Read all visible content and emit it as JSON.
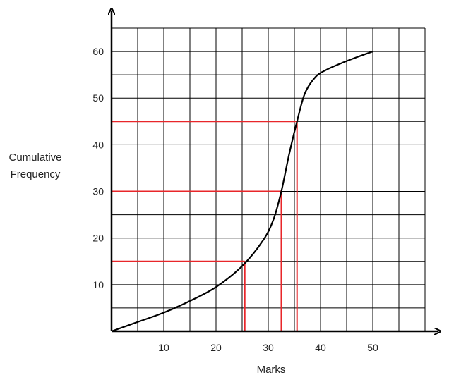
{
  "chart_data": {
    "type": "line",
    "title": "",
    "xlabel": "Marks",
    "ylabel_lines": [
      "Cumulative",
      "Frequency"
    ],
    "xlim": [
      0,
      60
    ],
    "ylim": [
      0,
      65
    ],
    "grid": true,
    "x_gridlines": [
      0,
      5,
      10,
      15,
      20,
      25,
      30,
      35,
      40,
      45,
      50,
      55,
      60
    ],
    "y_gridlines": [
      0,
      5,
      10,
      15,
      20,
      25,
      30,
      35,
      40,
      45,
      50,
      55,
      60,
      65
    ],
    "x_ticks": [
      "10",
      "20",
      "30",
      "40",
      "50"
    ],
    "x_tick_values": [
      10,
      20,
      30,
      40,
      50
    ],
    "y_ticks": [
      "10",
      "20",
      "30",
      "40",
      "50",
      "60"
    ],
    "y_tick_values": [
      10,
      20,
      30,
      40,
      50,
      60
    ],
    "series": [
      {
        "color": "#000000",
        "x": [
          0,
          5,
          10,
          15,
          20,
          25,
          29,
          31,
          32.5,
          34,
          35.5,
          37,
          39,
          41,
          44,
          47,
          50
        ],
        "y": [
          0,
          2,
          4,
          6.5,
          9.5,
          14,
          19.5,
          24,
          30,
          38,
          45,
          51,
          54.5,
          56,
          57.5,
          58.8,
          60
        ]
      }
    ],
    "reference_lines": [
      {
        "color": "#e8262a",
        "y": 15,
        "x": 25.5
      },
      {
        "color": "#e8262a",
        "y": 30,
        "x": 32.5
      },
      {
        "color": "#e8262a",
        "y": 45,
        "x": 35.5
      }
    ]
  }
}
